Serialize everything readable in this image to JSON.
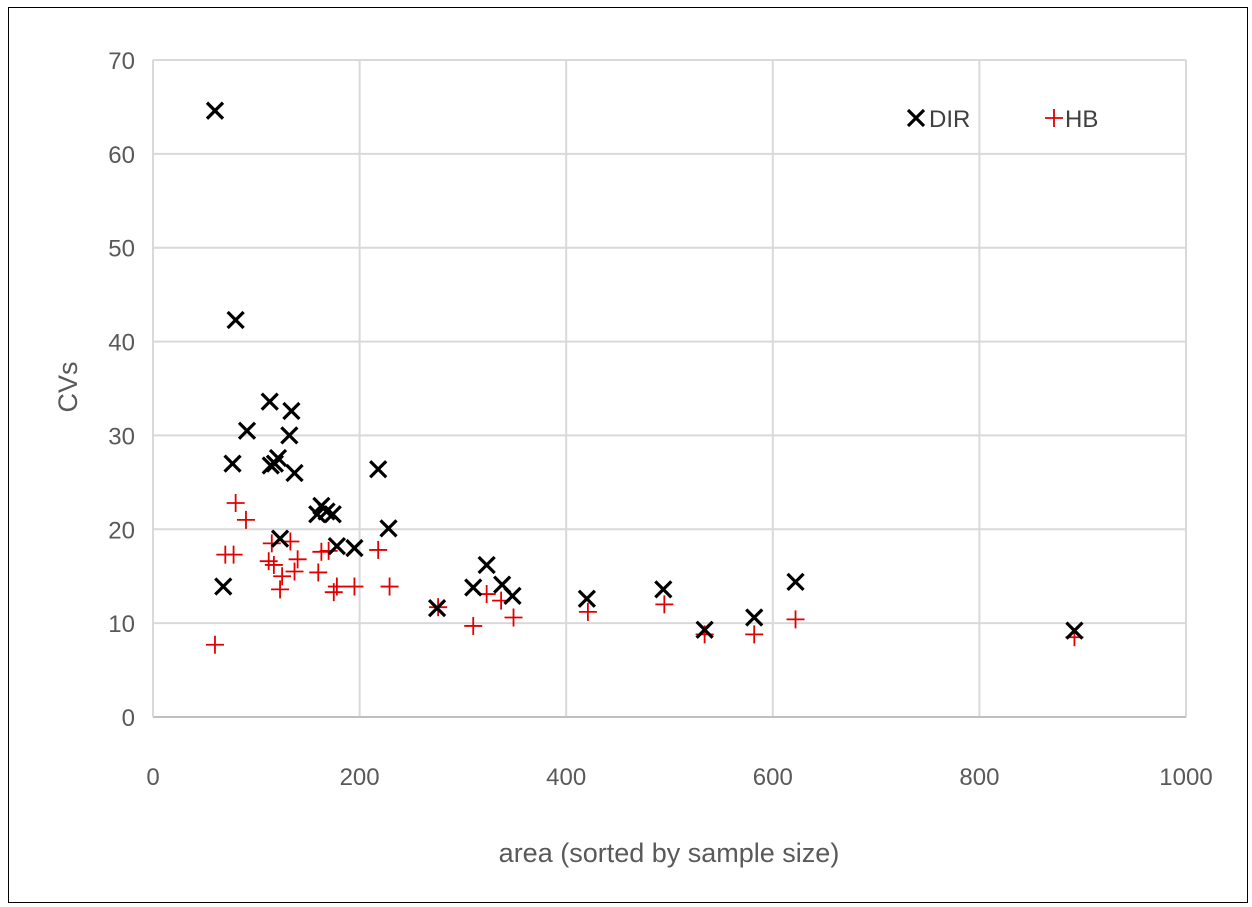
{
  "chart_data": {
    "type": "scatter",
    "title": "",
    "xlabel": "area (sorted by sample size)",
    "ylabel": "CVs",
    "xlim": [
      0,
      1000
    ],
    "ylim": [
      0,
      70
    ],
    "x_ticks": [
      "0",
      "200",
      "400",
      "600",
      "800",
      "1000"
    ],
    "y_ticks": [
      "0",
      "10",
      "20",
      "30",
      "40",
      "50",
      "60",
      "70"
    ],
    "grid": "major gridlines",
    "legend_position": "top-right",
    "series": [
      {
        "name": "DIR",
        "marker": "x",
        "color": "#000000",
        "points": [
          [
            60,
            64.6
          ],
          [
            68,
            13.9
          ],
          [
            77,
            27.0
          ],
          [
            80,
            42.3
          ],
          [
            91,
            30.5
          ],
          [
            113,
            33.6
          ],
          [
            114,
            26.8
          ],
          [
            118,
            27.0
          ],
          [
            121,
            27.6
          ],
          [
            123,
            19.0
          ],
          [
            132,
            30.0
          ],
          [
            134,
            32.6
          ],
          [
            137,
            26.0
          ],
          [
            159,
            21.6
          ],
          [
            163,
            22.5
          ],
          [
            168,
            21.9
          ],
          [
            174,
            21.6
          ],
          [
            178,
            18.2
          ],
          [
            195,
            18.0
          ],
          [
            218,
            26.4
          ],
          [
            228,
            20.1
          ],
          [
            275,
            11.6
          ],
          [
            310,
            13.8
          ],
          [
            323,
            16.2
          ],
          [
            338,
            14.1
          ],
          [
            348,
            12.9
          ],
          [
            420,
            12.6
          ],
          [
            494,
            13.6
          ],
          [
            534,
            9.3
          ],
          [
            582,
            10.6
          ],
          [
            622,
            14.4
          ],
          [
            892,
            9.2
          ]
        ]
      },
      {
        "name": "HB",
        "marker": "+",
        "color": "#e00000",
        "points": [
          [
            60,
            7.7
          ],
          [
            70,
            17.3
          ],
          [
            78,
            17.3
          ],
          [
            80,
            22.8
          ],
          [
            90,
            21.0
          ],
          [
            112,
            16.6
          ],
          [
            115,
            18.5
          ],
          [
            117,
            16.2
          ],
          [
            123,
            13.6
          ],
          [
            125,
            15.0
          ],
          [
            133,
            18.7
          ],
          [
            137,
            15.5
          ],
          [
            140,
            16.8
          ],
          [
            160,
            15.4
          ],
          [
            163,
            17.6
          ],
          [
            170,
            17.7
          ],
          [
            175,
            13.3
          ],
          [
            178,
            13.9
          ],
          [
            195,
            13.9
          ],
          [
            218,
            17.8
          ],
          [
            229,
            13.9
          ],
          [
            276,
            11.7
          ],
          [
            310,
            9.7
          ],
          [
            323,
            13.1
          ],
          [
            337,
            12.4
          ],
          [
            349,
            10.6
          ],
          [
            421,
            11.2
          ],
          [
            495,
            12.0
          ],
          [
            534,
            8.8
          ],
          [
            582,
            8.8
          ],
          [
            622,
            10.4
          ],
          [
            892,
            8.5
          ]
        ]
      }
    ]
  }
}
